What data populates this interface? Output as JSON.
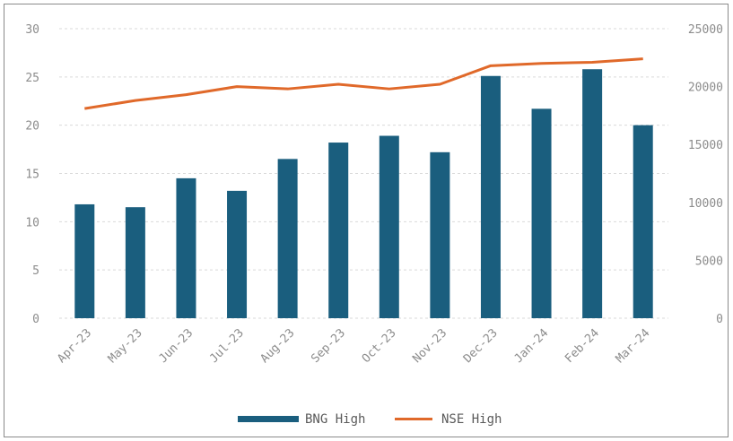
{
  "chart_data": {
    "type": "bar",
    "categories": [
      "Apr-23",
      "May-23",
      "Jun-23",
      "Jul-23",
      "Aug-23",
      "Sep-23",
      "Oct-23",
      "Nov-23",
      "Dec-23",
      "Jan-24",
      "Feb-24",
      "Mar-24"
    ],
    "series": [
      {
        "name": "BNG High",
        "type": "bar",
        "axis": "left",
        "color": "#1a5e7e",
        "values": [
          11.8,
          11.5,
          14.5,
          13.2,
          16.5,
          18.2,
          18.9,
          17.2,
          25.1,
          21.7,
          25.8,
          20.0
        ]
      },
      {
        "name": "NSE High",
        "type": "line",
        "axis": "right",
        "color": "#e0692a",
        "values": [
          18100,
          18800,
          19300,
          20000,
          19800,
          20200,
          19800,
          20200,
          21800,
          22000,
          22100,
          22400
        ]
      }
    ],
    "y_left": {
      "min": 0,
      "max": 30,
      "ticks": [
        "0",
        "5",
        "10",
        "15",
        "20",
        "25",
        "30"
      ]
    },
    "y_right": {
      "min": 0,
      "max": 25000,
      "ticks": [
        "0",
        "5000",
        "10000",
        "15000",
        "20000",
        "25000"
      ]
    },
    "grid": true,
    "legend": "bottom",
    "title": "",
    "xlabel": "",
    "ylabel": ""
  }
}
